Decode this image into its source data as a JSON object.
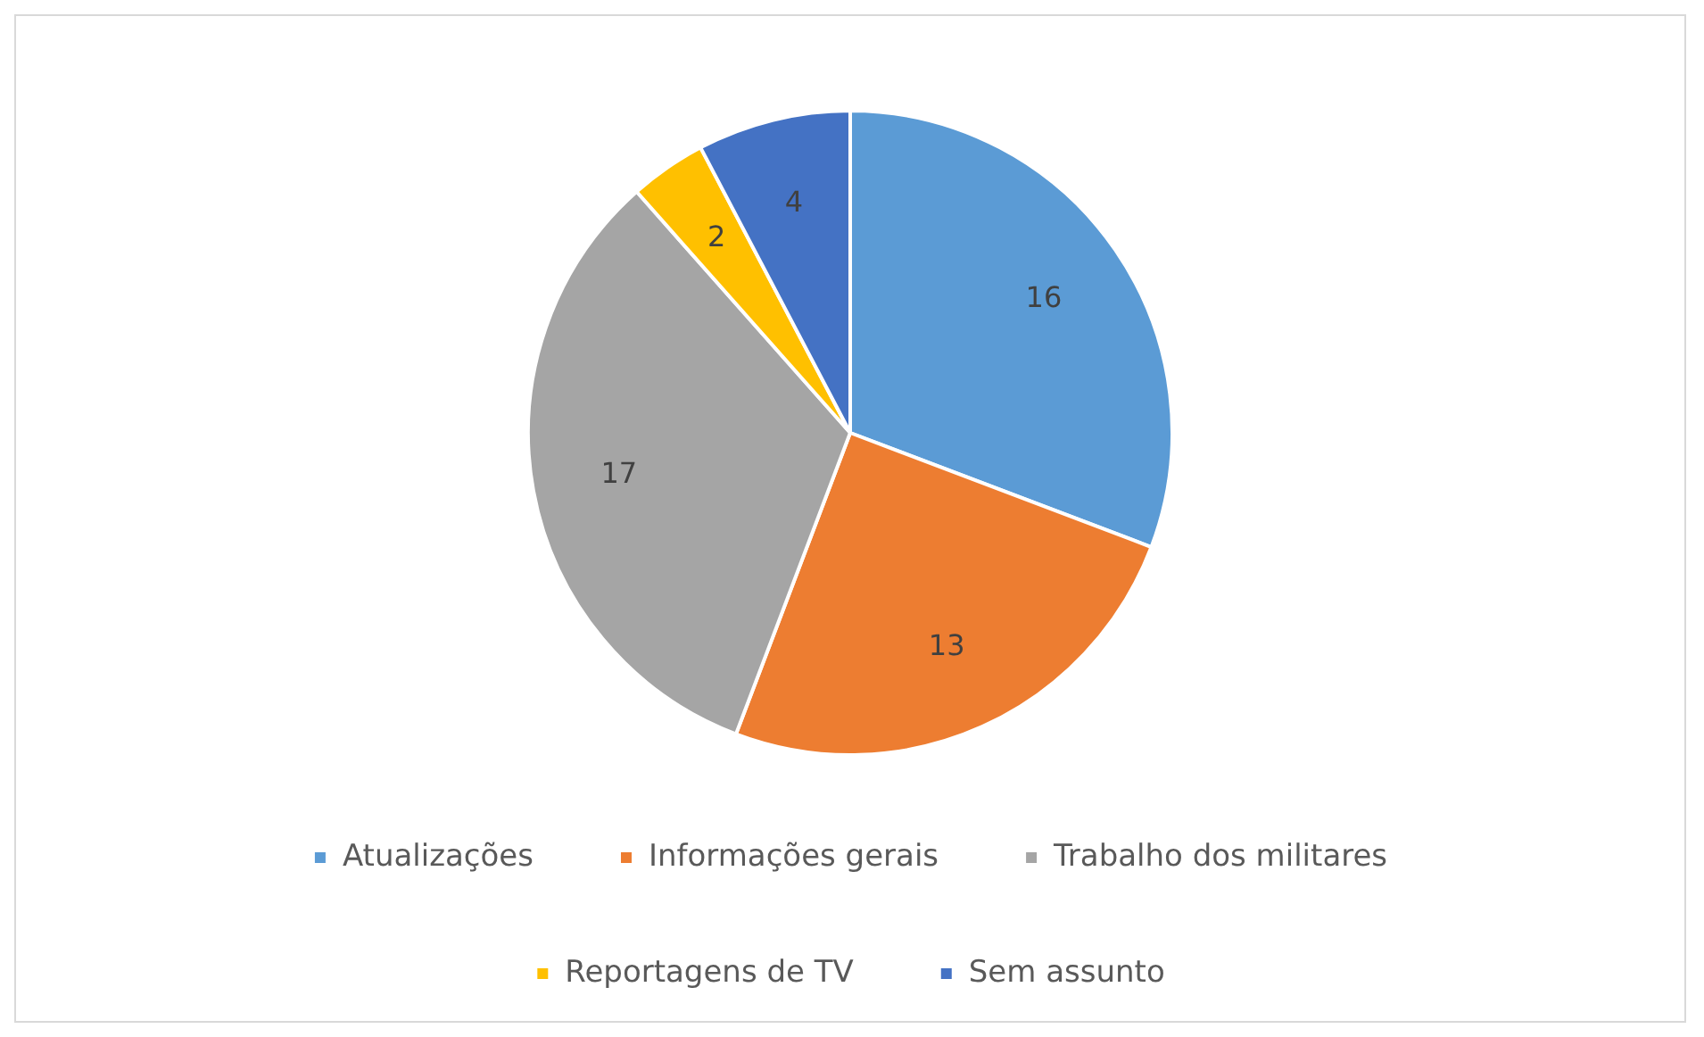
{
  "chart_data": {
    "type": "pie",
    "categories": [
      "Atualizações",
      "Informações gerais",
      "Trabalho dos militares",
      "Reportagens de TV",
      "Sem assunto"
    ],
    "values": [
      16,
      13,
      17,
      2,
      4
    ],
    "colors": [
      "#5b9bd5",
      "#ed7d31",
      "#a5a5a5",
      "#ffc000",
      "#4472c4"
    ],
    "data_labels": true,
    "legend": "bottom"
  }
}
